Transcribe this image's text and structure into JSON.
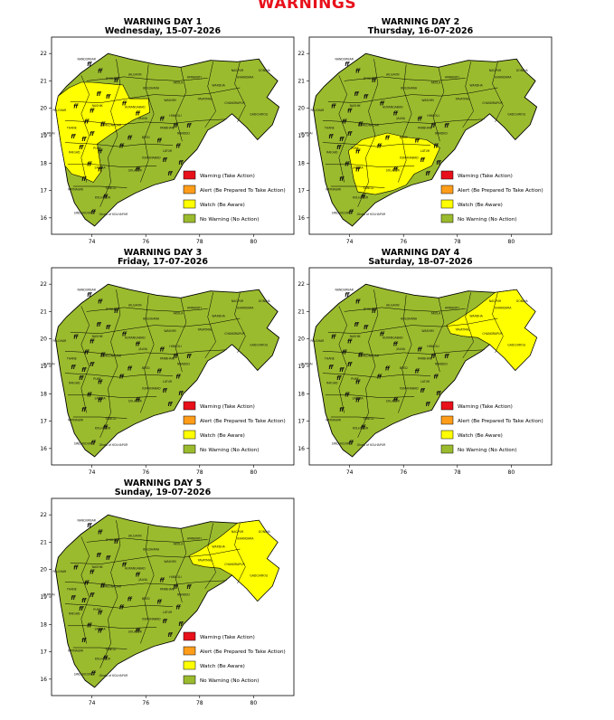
{
  "page": {
    "title": "WARNINGS"
  },
  "colors": {
    "warning": "#e8101a",
    "alert": "#ff9d1a",
    "watch": "#ffff00",
    "no_warning": "#9bbb2e",
    "title_red": "#e8101a",
    "border": "#000000"
  },
  "legend": {
    "items": [
      {
        "label": "Warning (Take Action)",
        "color": "#e8101a"
      },
      {
        "label": "Alert (Be Prepared To Take Action)",
        "color": "#ff9d1a"
      },
      {
        "label": "Watch (Be Aware)",
        "color": "#ffff00"
      },
      {
        "label": "No Warning (No Action)",
        "color": "#9bbb2e"
      }
    ]
  },
  "axes": {
    "x_ticks": [
      "74",
      "76",
      "78",
      "80"
    ],
    "y_ticks": [
      "22",
      "21",
      "20",
      "19",
      "18",
      "17",
      "16"
    ],
    "x_range": [
      72.5,
      81.5
    ],
    "y_range": [
      15.4,
      22.6
    ]
  },
  "icon": {
    "name": "lightning-thunderstorm-icon",
    "glyph": "ff"
  },
  "map_labels": [
    "MUMBAI",
    "NANDURBAR",
    "JALGAON",
    "NAGPUR",
    "GONDIA",
    "AMRAVATI",
    "WARDHA",
    "CHANDRAPUR",
    "GADCHIROLI",
    "YAVATMAL",
    "WASHIM",
    "AKOLA",
    "BULDHANA",
    "DHULE",
    "NASHIK",
    "AHMEDNAGAR",
    "AURANGABAD",
    "JALNA",
    "PUNE",
    "SATARA",
    "SANGLI",
    "KOLHAPUR",
    "SINDHUDURG",
    "RATNAGIRI",
    "RAIGAD",
    "THANE",
    "PALGHAR",
    "BEED",
    "LATUR",
    "OSMANABAD",
    "SOLAPUR",
    "NANDED",
    "PARBHANI",
    "HINGOLI",
    "BHANDARA",
    "Ghats of KOLHAPUR"
  ],
  "days": [
    {
      "title": "WARNING DAY 1",
      "date": "Wednesday, 15-07-2026",
      "watch_regions": [
        "north-west"
      ]
    },
    {
      "title": "WARNING DAY 2",
      "date": "Thursday, 16-07-2026",
      "watch_regions": [
        "south-central"
      ]
    },
    {
      "title": "WARNING DAY 3",
      "date": "Friday, 17-07-2026",
      "watch_regions": []
    },
    {
      "title": "WARNING DAY 4",
      "date": "Saturday, 18-07-2026",
      "watch_regions": [
        "east"
      ]
    },
    {
      "title": "WARNING DAY 5",
      "date": "Sunday, 19-07-2026",
      "watch_regions": [
        "east"
      ]
    }
  ]
}
